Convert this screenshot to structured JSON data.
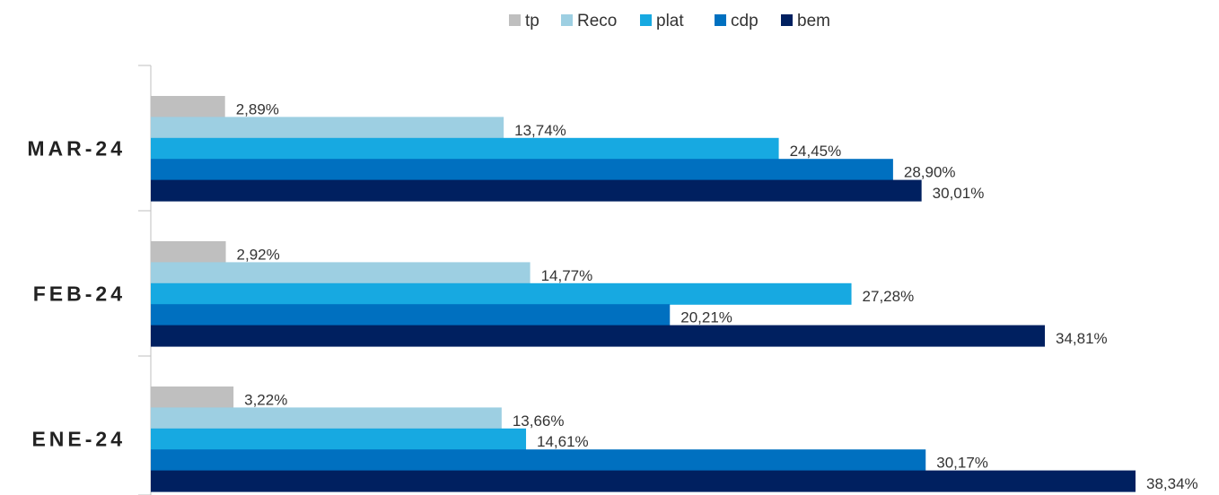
{
  "chart_data": {
    "type": "bar",
    "orientation": "horizontal",
    "categories": [
      "MAR-24",
      "FEB-24",
      "ENE-24"
    ],
    "series": [
      {
        "name": "tp",
        "color": "#BFBFBF",
        "values": [
          2.89,
          2.92,
          3.22
        ],
        "labels": [
          "2,89%",
          "2,92%",
          "3,22%"
        ]
      },
      {
        "name": "Reco",
        "color": "#9DCFE2",
        "values": [
          13.74,
          14.77,
          13.66
        ],
        "labels": [
          "13,74%",
          "14,77%",
          "13,66%"
        ]
      },
      {
        "name": "plat",
        "color": "#17A9E1",
        "values": [
          24.45,
          27.28,
          14.61
        ],
        "labels": [
          "24,45%",
          "27,28%",
          "14,61%"
        ]
      },
      {
        "name": "cdp",
        "color": "#0070C0",
        "values": [
          28.9,
          20.21,
          30.17
        ],
        "labels": [
          "28,90%",
          "20,21%",
          "30,17%"
        ]
      },
      {
        "name": "bem",
        "color": "#002060",
        "values": [
          30.01,
          34.81,
          38.34
        ],
        "labels": [
          "30,01%",
          "34,81%",
          "38,34%"
        ]
      }
    ],
    "xlim": [
      0,
      38.34
    ],
    "grid": false,
    "legend_position": "top-center",
    "title": "",
    "xlabel": "",
    "ylabel": ""
  }
}
